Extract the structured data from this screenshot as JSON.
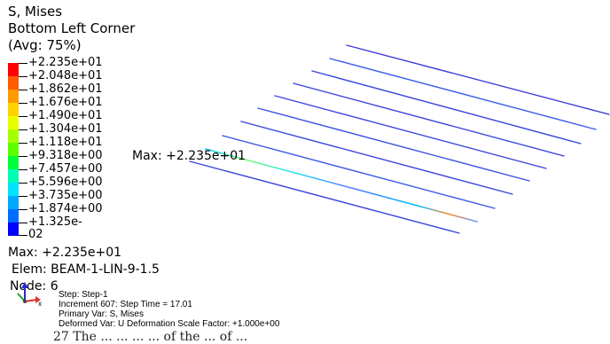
{
  "legend": {
    "title": [
      "S, Mises",
      "Bottom Left Corner",
      "(Avg: 75%)"
    ],
    "labels": [
      "+2.235e+01",
      "+2.048e+01",
      "+1.862e+01",
      "+1.676e+01",
      "+1.490e+01",
      "+1.304e+01",
      "+1.118e+01",
      "+9.318e+00",
      "+7.457e+00",
      "+5.596e+00",
      "+3.735e+00",
      "+1.874e+00",
      "+1.325e-02"
    ],
    "colors": [
      "#ff0000",
      "#ff5a00",
      "#ff9a00",
      "#ffd200",
      "#e8ff00",
      "#a6ff00",
      "#5cff00",
      "#00ff3a",
      "#00ffb4",
      "#00e4ff",
      "#00a8ff",
      "#006cff",
      "#0000ff"
    ]
  },
  "info": {
    "max": "Max: +2.235e+01",
    "elem": "Elem: BEAM-1-LIN-9-1.5",
    "node": "Node: 6"
  },
  "annotation": "Max: +2.235e+01",
  "step": {
    "line1": "Step: Step-1",
    "line2": "Increment    607: Step Time =     17.01",
    "line3": "Primary Var: S, Mises",
    "line4": "Deformed Var: U   Deformation Scale Factor: +1.000e+00"
  },
  "triad": {
    "x_label": "x"
  },
  "bottom_text": "27 The ... ... ... ... of the ... of ..."
}
